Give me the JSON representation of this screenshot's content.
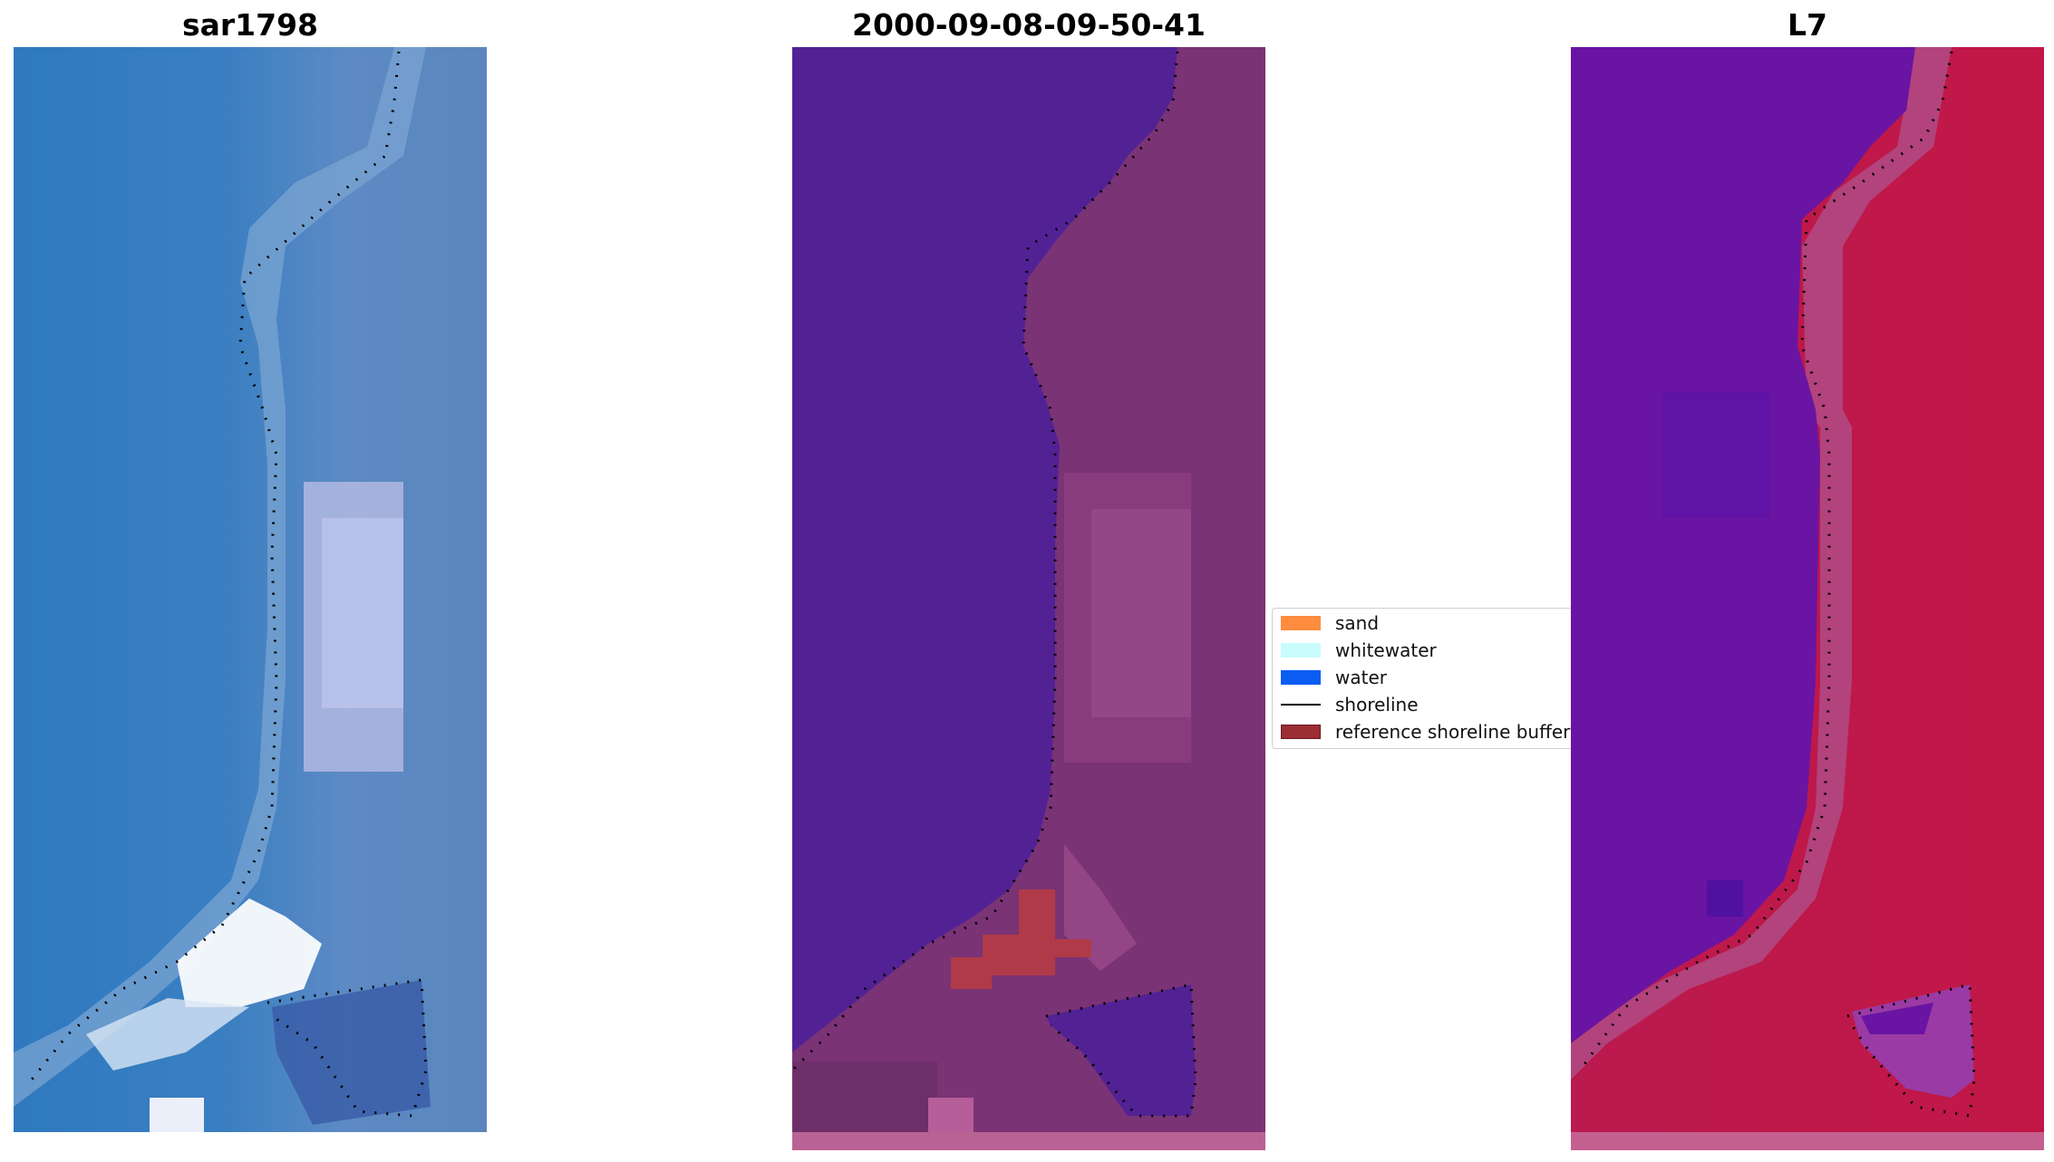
{
  "panels": [
    {
      "title": "sar1798"
    },
    {
      "title": "2000-09-08-09-50-41"
    },
    {
      "title": "L7"
    }
  ],
  "legend": {
    "items": [
      {
        "label": "sand",
        "color": "#ff8c3f"
      },
      {
        "label": "whitewater",
        "color": "#c8fcfc"
      },
      {
        "label": "water",
        "color": "#0a5cf2"
      },
      {
        "label": "shoreline",
        "color": "#000000"
      },
      {
        "label": "reference shoreline buffer",
        "color": "#9b2d35"
      }
    ]
  },
  "colors": {
    "rgb_water": "#3a7cc0",
    "rgb_land": "#5f86bd",
    "class_water": "#522295",
    "class_land": "#7a3375",
    "class_buffer": "#b03a48",
    "mndwi_water": "#6a14a3",
    "mndwi_land": "#c41a48"
  }
}
